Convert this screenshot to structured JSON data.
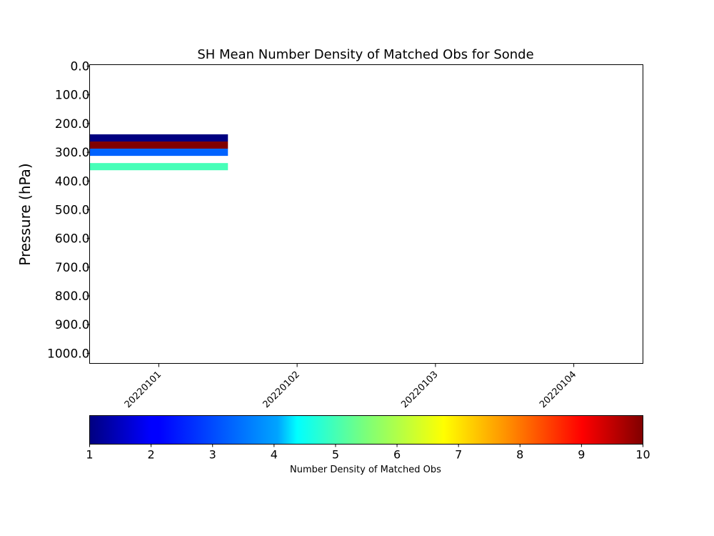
{
  "chart_data": {
    "type": "heatmap",
    "title": "SH Mean Number Density of Matched Obs for Sonde",
    "ylabel": "Pressure (hPa)",
    "xlabel": "",
    "x_categories": [
      "20220101",
      "20220102",
      "20220103",
      "20220104"
    ],
    "y_ticks": [
      "0.0",
      "100.0",
      "200.0",
      "300.0",
      "400.0",
      "500.0",
      "600.0",
      "700.0",
      "800.0",
      "900.0",
      "1000.0"
    ],
    "y_tick_values": [
      0,
      100,
      200,
      300,
      400,
      500,
      600,
      700,
      800,
      900,
      1000
    ],
    "ylim": [
      1035,
      -5
    ],
    "y_inverted": true,
    "cells": [
      {
        "x": "20220101",
        "p_top": 237.5,
        "p_bottom": 262.5,
        "value": 1
      },
      {
        "x": "20220101",
        "p_top": 262.5,
        "p_bottom": 287.5,
        "value": 10
      },
      {
        "x": "20220101",
        "p_top": 287.5,
        "p_bottom": 312.5,
        "value": 3
      },
      {
        "x": "20220101",
        "p_top": 337.5,
        "p_bottom": 362.5,
        "value": 5
      }
    ],
    "colorbar": {
      "label": "Number Density of Matched Obs",
      "min": 1,
      "max": 10,
      "ticks": [
        "1",
        "2",
        "3",
        "4",
        "5",
        "6",
        "7",
        "8",
        "9",
        "10"
      ],
      "colormap": "jet",
      "orientation": "horizontal"
    },
    "grid": false
  }
}
